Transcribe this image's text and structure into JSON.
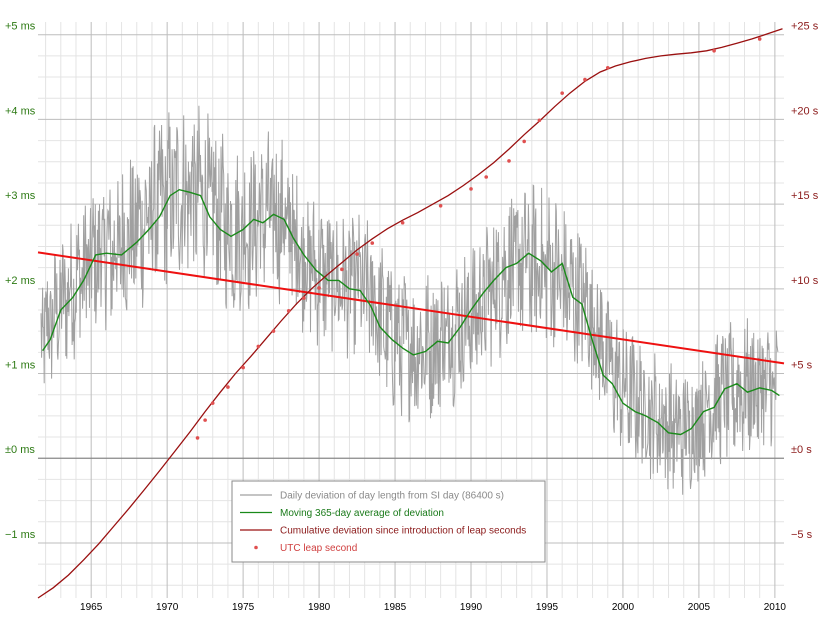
{
  "chart_data": {
    "type": "line",
    "title": "",
    "xlabel": "",
    "ylabel_left": "",
    "ylabel_right": "",
    "xlim": [
      1961.5,
      2010.6
    ],
    "x_ticks": [
      1965,
      1970,
      1975,
      1980,
      1985,
      1990,
      1995,
      2000,
      2005,
      2010
    ],
    "x_tick_labels": [
      "1965",
      "1970",
      "1975",
      "1980",
      "1985",
      "1990",
      "1995",
      "2000",
      "2005",
      "2010"
    ],
    "ylim_left_ms": [
      -1.65,
      5.15
    ],
    "y_ticks_left": [
      -1,
      0,
      1,
      2,
      3,
      4,
      5
    ],
    "y_tick_labels_left": [
      "−1 ms",
      "±0 ms",
      "+1 ms",
      "+2 ms",
      "+3 ms",
      "+4 ms",
      "+5 ms"
    ],
    "ylim_right_s": [
      -8.25,
      25.75
    ],
    "y_ticks_right": [
      -5,
      0,
      5,
      10,
      15,
      20,
      25
    ],
    "y_tick_labels_right": [
      "−5 s",
      "±0 s",
      "+5 s",
      "+10 s",
      "+15 s",
      "+20 s",
      "+25 s"
    ],
    "grid": true,
    "legend_position": "bottom-center",
    "colors": {
      "daily": "#a0a0a0",
      "moving_average": "#1a8a1a",
      "cumulative": "#9a1010",
      "leap": "#e05050",
      "trend": "#ee1111",
      "grid_minor": "#e4e4e4",
      "grid_major": "#bdbdbd",
      "zero_line": "#888888",
      "left_axis_text": "#2d7a14",
      "right_axis_text": "#8b1a1a"
    },
    "series": [
      {
        "name": "Daily deviation of day length from SI day (86400 s)",
        "axis": "left",
        "kind": "noisy-band",
        "x": [
          1961.5,
          1962.5,
          1963.5,
          1964.5,
          1965.5,
          1966.5,
          1967.5,
          1968.5,
          1969.5,
          1970.5,
          1971.5,
          1972.5,
          1973.5,
          1974.5,
          1975.5,
          1976.5,
          1977.5,
          1978.5,
          1979.5,
          1980.5,
          1981.5,
          1982.5,
          1983.5,
          1984.5,
          1985.5,
          1986.5,
          1987.5,
          1988.5,
          1989.5,
          1990.5,
          1991.5,
          1992.5,
          1993.5,
          1994.5,
          1995.5,
          1996.5,
          1997.5,
          1998.5,
          1999.5,
          2000.5,
          2001.5,
          2002.5,
          2003.5,
          2004.5,
          2005.5,
          2006.5,
          2007.5,
          2008.5,
          2009.5,
          2010.5
        ],
        "center": [
          1.35,
          1.65,
          1.95,
          2.2,
          2.4,
          2.45,
          2.6,
          2.8,
          3.0,
          3.1,
          3.15,
          3.1,
          2.85,
          2.65,
          2.75,
          2.9,
          2.85,
          2.55,
          2.25,
          2.15,
          2.05,
          2.05,
          1.9,
          1.5,
          1.35,
          1.3,
          1.35,
          1.5,
          1.6,
          1.75,
          2.05,
          2.25,
          2.3,
          2.25,
          2.2,
          1.95,
          1.85,
          1.4,
          0.95,
          0.75,
          0.55,
          0.45,
          0.3,
          0.35,
          0.6,
          0.75,
          0.8,
          0.85,
          0.85,
          0.75
        ],
        "amplitude": [
          0.75,
          0.75,
          0.8,
          0.8,
          0.9,
          0.95,
          0.95,
          0.95,
          1.0,
          1.0,
          1.0,
          1.0,
          0.95,
          0.95,
          0.95,
          0.95,
          0.95,
          0.9,
          0.85,
          0.8,
          0.8,
          0.8,
          0.85,
          0.85,
          0.85,
          0.85,
          0.85,
          0.85,
          0.85,
          0.85,
          0.9,
          0.9,
          0.95,
          0.9,
          0.9,
          0.9,
          0.85,
          0.85,
          0.8,
          0.75,
          0.75,
          0.75,
          0.75,
          0.75,
          0.75,
          0.8,
          0.8,
          0.8,
          0.8,
          0.75
        ]
      },
      {
        "name": "Moving 365-day average of deviation",
        "axis": "left",
        "x": [
          1961.8,
          1962.3,
          1963.0,
          1963.8,
          1964.5,
          1965.3,
          1966.0,
          1967.0,
          1968.0,
          1968.8,
          1969.5,
          1970.2,
          1970.8,
          1971.5,
          1972.2,
          1972.8,
          1973.5,
          1974.2,
          1975.0,
          1975.7,
          1976.3,
          1977.0,
          1977.7,
          1978.3,
          1979.0,
          1979.8,
          1980.6,
          1981.3,
          1982.0,
          1982.7,
          1983.4,
          1984.0,
          1984.8,
          1985.5,
          1986.2,
          1987.0,
          1987.8,
          1988.5,
          1989.3,
          1990.0,
          1990.8,
          1991.5,
          1992.3,
          1993.0,
          1993.8,
          1994.6,
          1995.3,
          1996.0,
          1996.7,
          1997.3,
          1998.0,
          1998.7,
          1999.3,
          2000.0,
          2000.8,
          2001.5,
          2002.3,
          2003.0,
          2003.8,
          2004.5,
          2005.3,
          2006.0,
          2006.7,
          2007.5,
          2008.2,
          2009.0,
          2009.8,
          2010.3
        ],
        "y": [
          1.27,
          1.4,
          1.75,
          1.9,
          2.1,
          2.4,
          2.42,
          2.4,
          2.55,
          2.7,
          2.85,
          3.1,
          3.17,
          3.14,
          3.1,
          2.85,
          2.7,
          2.62,
          2.7,
          2.82,
          2.78,
          2.88,
          2.82,
          2.6,
          2.4,
          2.22,
          2.1,
          2.1,
          2.0,
          1.98,
          1.8,
          1.55,
          1.4,
          1.3,
          1.22,
          1.26,
          1.38,
          1.36,
          1.55,
          1.75,
          1.95,
          2.1,
          2.25,
          2.3,
          2.42,
          2.33,
          2.2,
          2.3,
          1.9,
          1.82,
          1.38,
          0.98,
          0.88,
          0.65,
          0.55,
          0.5,
          0.42,
          0.3,
          0.28,
          0.35,
          0.55,
          0.6,
          0.82,
          0.88,
          0.78,
          0.83,
          0.8,
          0.74
        ]
      },
      {
        "name": "Cumulative deviation since introduction of leap seconds",
        "axis": "right",
        "x": [
          1961.5,
          1962.5,
          1963.5,
          1964.5,
          1965.5,
          1966.5,
          1967.5,
          1968.5,
          1969.5,
          1970.5,
          1971.5,
          1972.5,
          1973.5,
          1974.5,
          1975.5,
          1976.5,
          1977.5,
          1978.5,
          1979.5,
          1980.5,
          1981.5,
          1982.5,
          1983.5,
          1984.5,
          1985.5,
          1986.5,
          1987.5,
          1988.5,
          1989.5,
          1990.5,
          1991.5,
          1992.5,
          1993.5,
          1994.5,
          1995.5,
          1996.5,
          1997.5,
          1998.5,
          1999.5,
          2000.5,
          2001.5,
          2002.5,
          2003.5,
          2004.5,
          2005.5,
          2006.5,
          2007.5,
          2008.5,
          2009.5,
          2010.5
        ],
        "y": [
          -8.25,
          -7.65,
          -6.9,
          -6.0,
          -5.05,
          -4.0,
          -2.95,
          -1.85,
          -0.75,
          0.4,
          1.55,
          2.75,
          3.9,
          5.0,
          6.0,
          7.05,
          8.1,
          9.1,
          10.0,
          10.8,
          11.55,
          12.3,
          12.95,
          13.55,
          14.05,
          14.5,
          15.0,
          15.5,
          16.1,
          16.75,
          17.45,
          18.25,
          19.1,
          19.9,
          20.75,
          21.55,
          22.25,
          22.8,
          23.15,
          23.4,
          23.6,
          23.75,
          23.85,
          23.93,
          24.05,
          24.25,
          24.5,
          24.75,
          25.05,
          25.35
        ]
      },
      {
        "name": "UTC leap second",
        "axis": "right",
        "kind": "points",
        "x": [
          1972.0,
          1972.5,
          1973.0,
          1974.0,
          1975.0,
          1976.0,
          1977.0,
          1978.0,
          1979.0,
          1980.0,
          1981.5,
          1982.5,
          1983.5,
          1985.5,
          1988.0,
          1990.0,
          1991.0,
          1992.5,
          1993.5,
          1994.5,
          1996.0,
          1997.5,
          1999.0,
          2006.0,
          2009.0
        ],
        "y": [
          1.2,
          2.25,
          3.25,
          4.2,
          5.35,
          6.6,
          7.5,
          8.7,
          9.45,
          10.05,
          11.15,
          12.05,
          12.7,
          13.9,
          14.9,
          15.9,
          16.6,
          17.55,
          18.7,
          19.95,
          21.55,
          22.35,
          23.05,
          24.05,
          24.75
        ]
      },
      {
        "name": "",
        "axis": "left",
        "kind": "trend",
        "x": [
          1961.5,
          2010.6
        ],
        "y": [
          2.43,
          1.12
        ]
      }
    ],
    "legend": [
      {
        "label": "Daily deviation of day length from SI day (86400 s)",
        "color_key": "daily",
        "kind": "line"
      },
      {
        "label": "Moving 365-day average of deviation",
        "color_key": "moving_average",
        "kind": "line"
      },
      {
        "label": "Cumulative deviation since introduction of leap seconds",
        "color_key": "cumulative",
        "kind": "line"
      },
      {
        "label": "UTC leap second",
        "color_key": "leap",
        "kind": "point"
      }
    ]
  }
}
